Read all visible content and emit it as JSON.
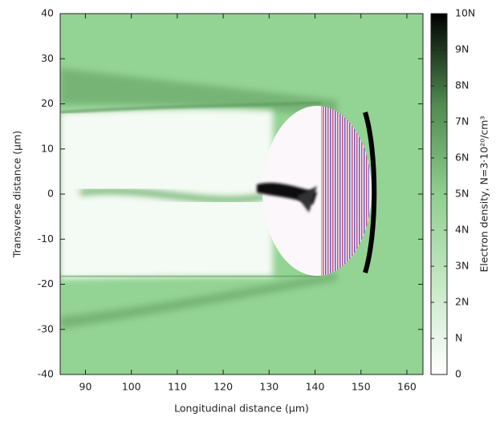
{
  "chart_data": {
    "type": "heatmap",
    "x_label": "Longitudinal distance (μm)",
    "y_label": "Transverse distance (μm)",
    "xlim": [
      84.5,
      163.5
    ],
    "xticks": [
      90,
      100,
      110,
      120,
      130,
      140,
      150,
      160
    ],
    "ylim": [
      -40,
      40
    ],
    "yticks": [
      -40,
      -30,
      -20,
      -10,
      0,
      10,
      20,
      30,
      40
    ],
    "colorbar": {
      "label": "Electron density, N=3·10²⁰/cm³",
      "lim": [
        0,
        10
      ],
      "ticks": [
        0,
        {
          "value": 1,
          "label": "N"
        },
        {
          "value": 2,
          "label": "2N"
        },
        {
          "value": 3,
          "label": "3N"
        },
        {
          "value": 4,
          "label": "4N"
        },
        {
          "value": 5,
          "label": "5N"
        },
        {
          "value": 6,
          "label": "6N"
        },
        {
          "value": 7,
          "label": "7N"
        },
        {
          "value": 8,
          "label": "8N"
        },
        {
          "value": 9,
          "label": "9N"
        },
        {
          "value": 10,
          "label": "10N"
        }
      ],
      "colors": [
        "#ffffff",
        "#c6e8c6",
        "#8fcf8f",
        "#4f8a4f",
        "#000000"
      ]
    }
  }
}
